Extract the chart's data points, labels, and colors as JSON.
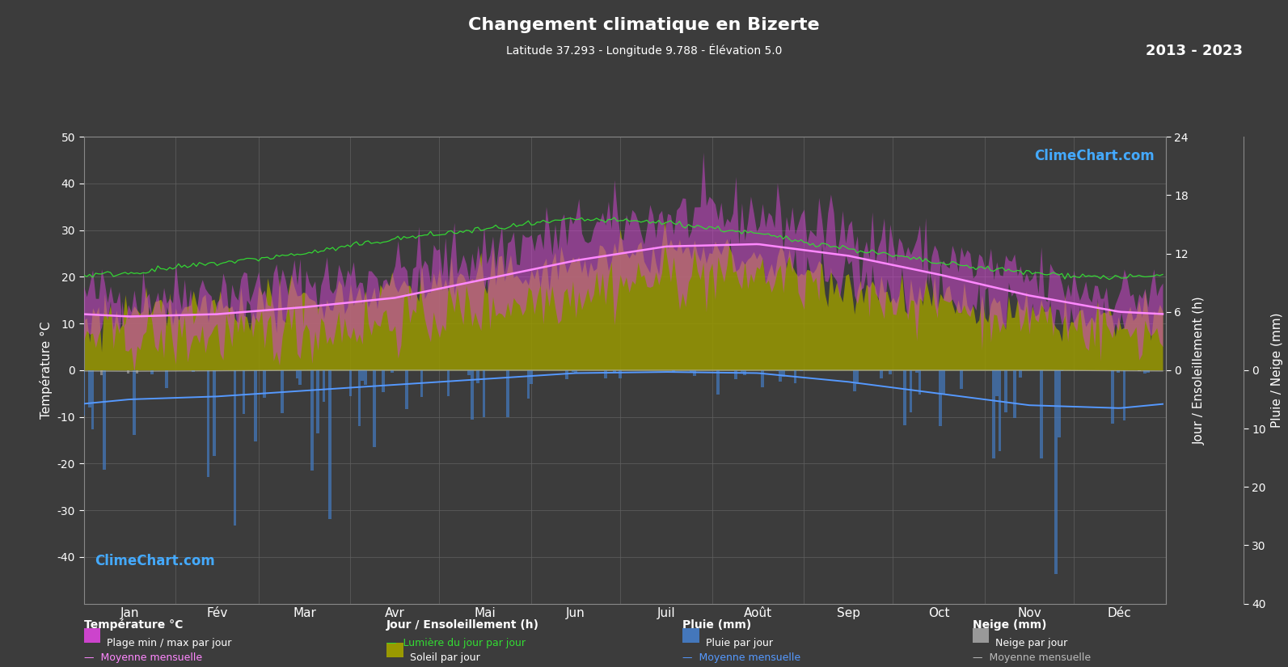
{
  "title": "Changement climatique en Bizerte",
  "subtitle": "Latitude 37.293 - Longitude 9.788 - Élévation 5.0",
  "year_range": "2013 - 2023",
  "background_color": "#3c3c3c",
  "plot_bg_color": "#3c3c3c",
  "text_color": "#ffffff",
  "months": [
    "Jan",
    "Fév",
    "Mar",
    "Avr",
    "Mai",
    "Jun",
    "Juil",
    "Août",
    "Sep",
    "Oct",
    "Nov",
    "Déc"
  ],
  "temp_ylim": [
    -50,
    50
  ],
  "sun_ylim_max": 24,
  "rain_ylim_max": 40,
  "temp_mean": [
    11.5,
    12.0,
    13.5,
    15.5,
    19.5,
    23.5,
    26.5,
    27.0,
    24.5,
    20.5,
    16.0,
    12.5
  ],
  "temp_max_mean": [
    16.0,
    17.0,
    18.5,
    21.0,
    25.5,
    30.0,
    33.0,
    33.5,
    29.5,
    24.5,
    19.5,
    16.5
  ],
  "temp_min_mean": [
    7.0,
    7.5,
    8.5,
    10.5,
    13.5,
    17.0,
    20.0,
    20.5,
    18.0,
    15.0,
    12.0,
    8.5
  ],
  "daylight_mean": [
    10.0,
    11.0,
    12.0,
    13.5,
    14.5,
    15.5,
    15.2,
    14.0,
    12.5,
    11.0,
    10.0,
    9.5
  ],
  "sunshine_mean": [
    5.5,
    6.5,
    7.0,
    8.5,
    9.5,
    11.0,
    12.5,
    11.5,
    9.0,
    7.0,
    5.5,
    5.0
  ],
  "rain_mean_mm": [
    5.0,
    4.5,
    3.5,
    2.5,
    1.5,
    0.5,
    0.3,
    0.5,
    2.0,
    4.0,
    6.0,
    6.5
  ],
  "snow_mean_mm": [
    0.2,
    0.1,
    0.0,
    0.0,
    0.0,
    0.0,
    0.0,
    0.0,
    0.0,
    0.0,
    0.0,
    0.1
  ],
  "grid_color": "#606060",
  "temp_fill_color": "#cc44cc",
  "sunshine_fill_color": "#999900",
  "rain_bar_color": "#4477bb",
  "snow_bar_color": "#999999",
  "daylight_line_color": "#33dd33",
  "sunshine_line_color": "#cccc00",
  "temp_mean_line_color": "#ff88ff",
  "rain_mean_line_color": "#5599ff",
  "snow_mean_line_color": "#bbbbbb",
  "climechart_color": "#44aaff",
  "days_per_month": [
    31,
    28,
    31,
    30,
    31,
    30,
    31,
    31,
    30,
    31,
    30,
    31
  ]
}
